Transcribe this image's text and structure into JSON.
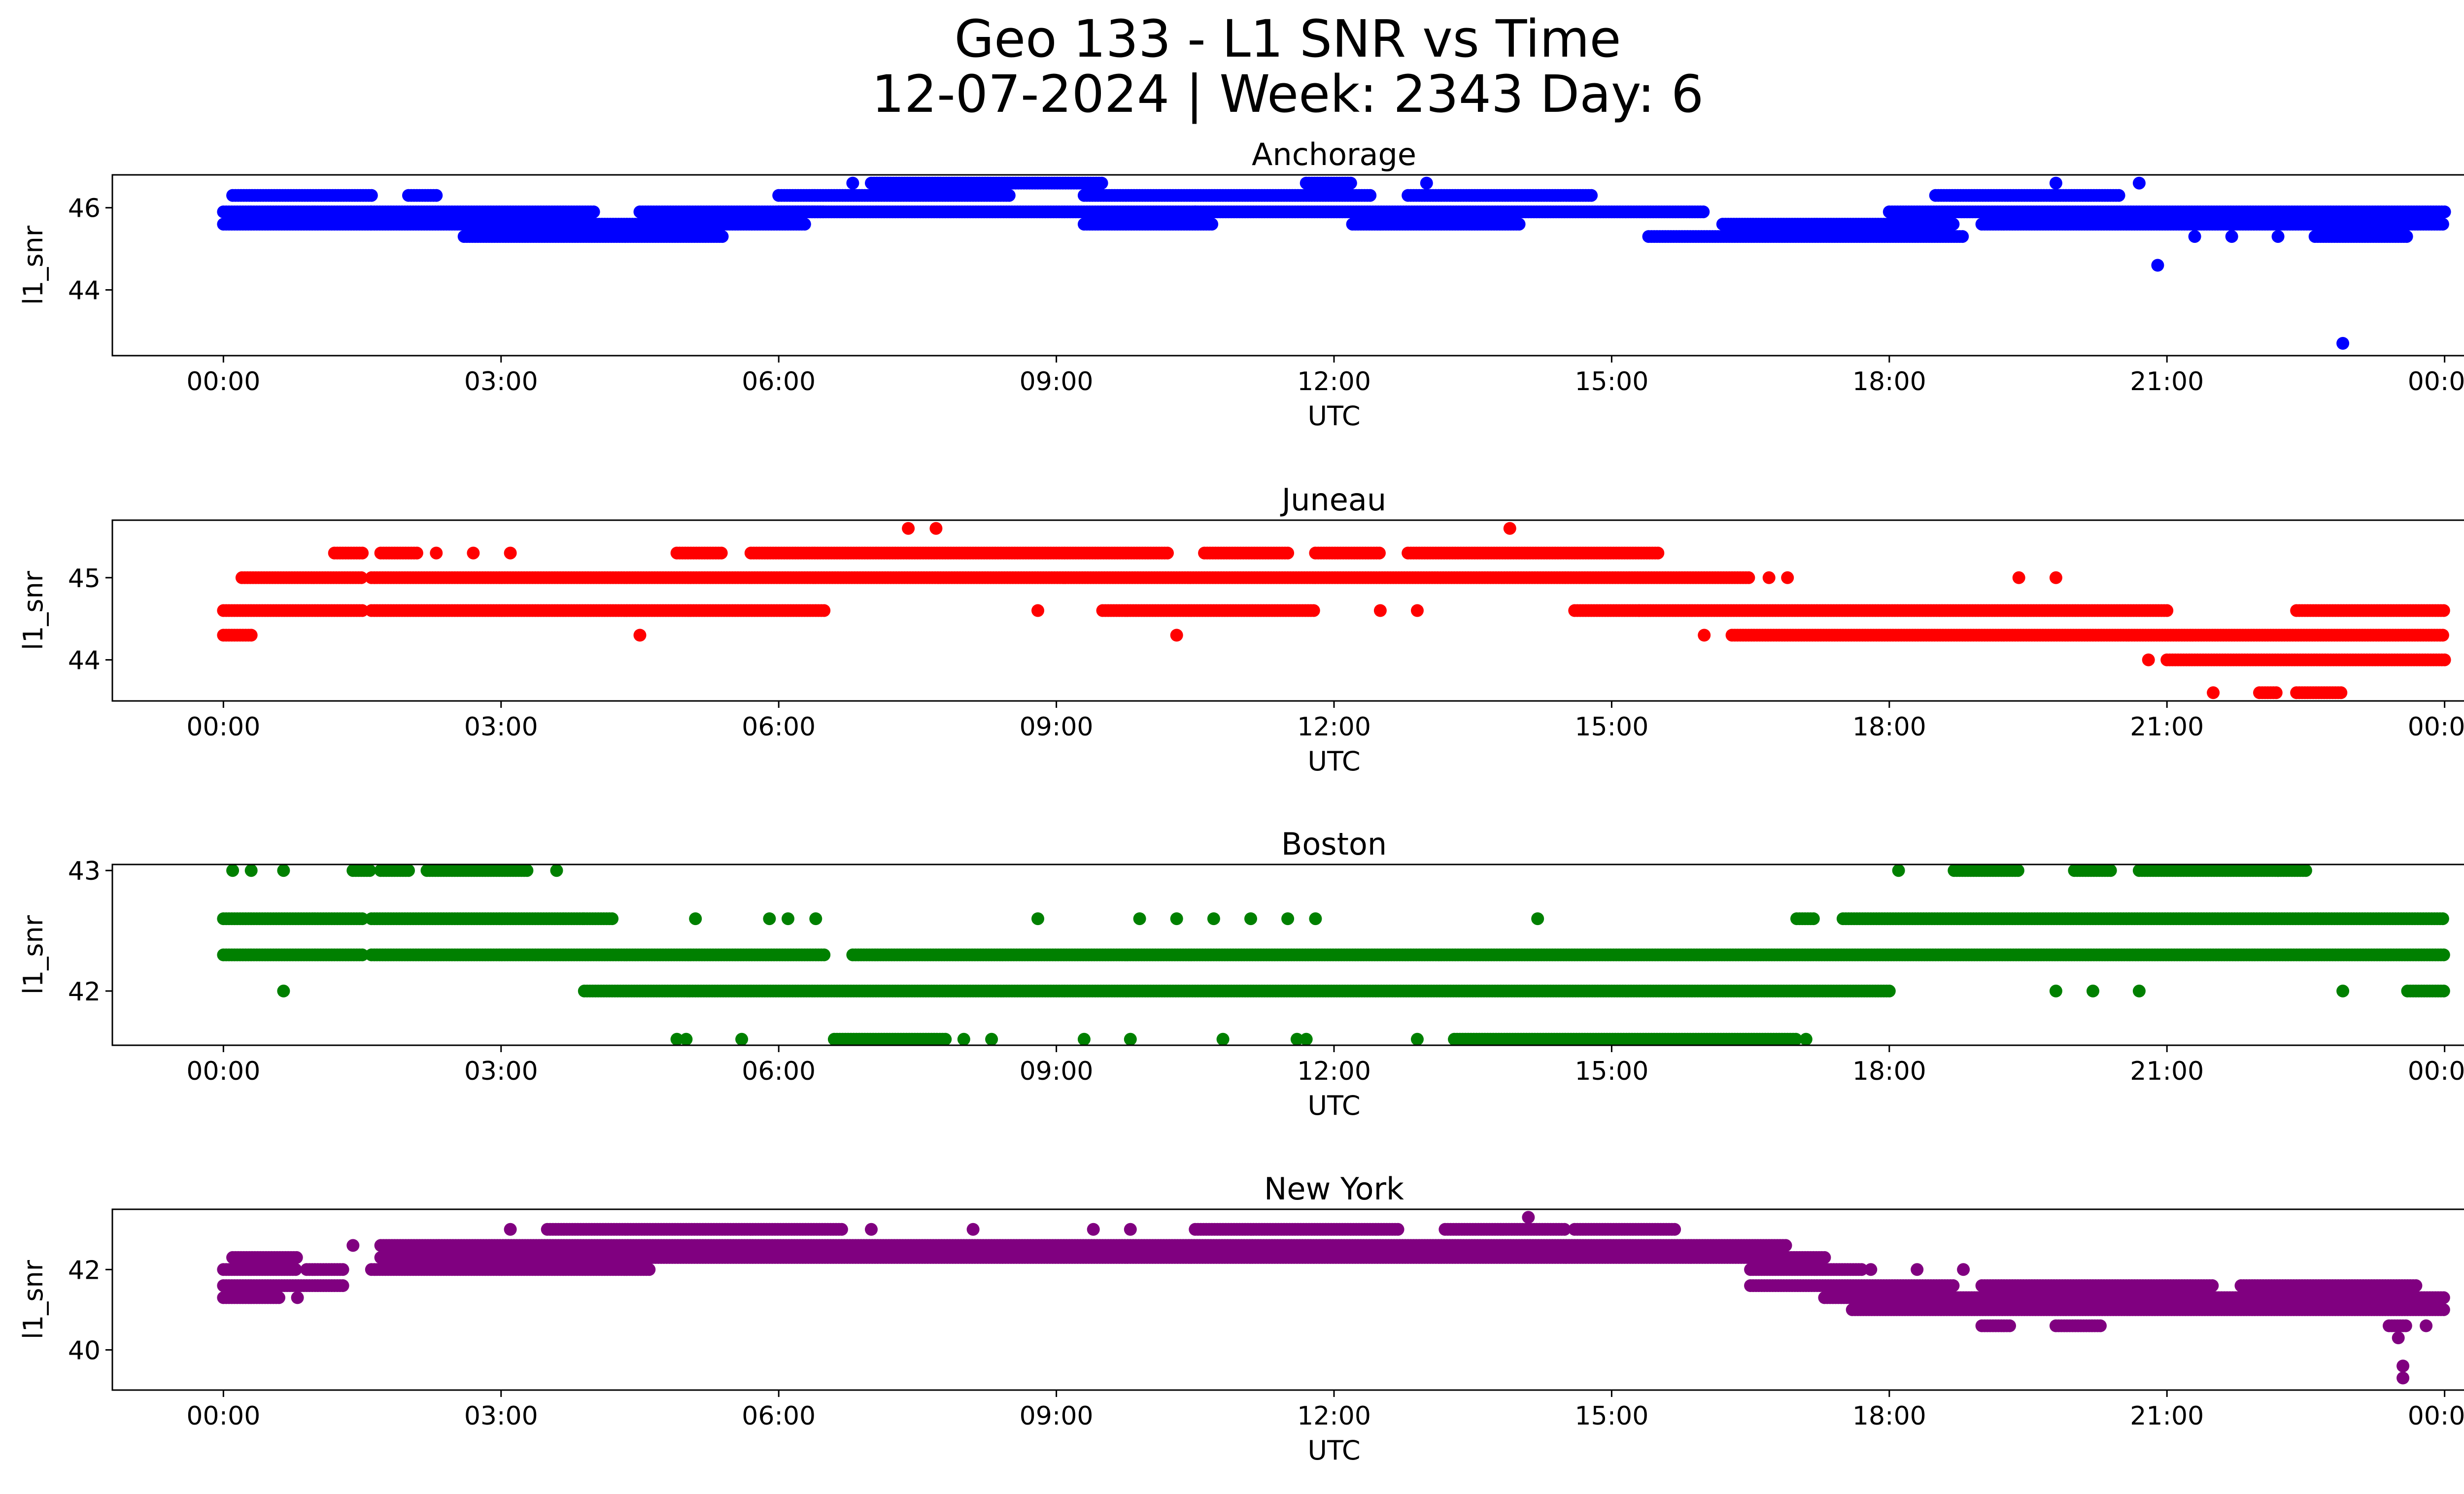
{
  "figure": {
    "title_line1": "Geo 133 - L1 SNR vs Time",
    "title_line2": "12-07-2024 | Week: 2343 Day: 6"
  },
  "chart_data": [
    {
      "type": "scatter",
      "title": "Anchorage",
      "xlabel": "UTC",
      "ylabel": "l1_snr",
      "color": "#0000ff",
      "x_ticks": [
        "00:00",
        "03:00",
        "06:00",
        "09:00",
        "12:00",
        "15:00",
        "18:00",
        "21:00",
        "00:00"
      ],
      "xlim_hours": [
        -1.2,
        25.2
      ],
      "ylim": [
        42.4,
        46.8
      ],
      "y_ticks": [
        44,
        46
      ],
      "levels": [
        {
          "y": 46.3,
          "segments": [
            [
              0.1,
              1.6
            ],
            [
              2.0,
              2.3
            ],
            [
              6.0,
              8.5
            ],
            [
              9.3,
              12.4
            ],
            [
              12.8,
              14.8
            ],
            [
              18.5,
              20.5
            ]
          ]
        },
        {
          "y": 45.9,
          "segments": [
            [
              0.0,
              1.6
            ],
            [
              1.6,
              4.0
            ],
            [
              4.5,
              6.5
            ],
            [
              6.0,
              10.5
            ],
            [
              10.5,
              16.0
            ],
            [
              18.0,
              24.0
            ]
          ]
        },
        {
          "y": 45.6,
          "segments": [
            [
              0.0,
              1.6
            ],
            [
              1.6,
              6.3
            ],
            [
              9.3,
              10.7
            ],
            [
              12.2,
              14.0
            ],
            [
              16.2,
              18.7
            ],
            [
              19.0,
              24.0
            ]
          ]
        },
        {
          "y": 45.3,
          "segments": [
            [
              2.6,
              5.4
            ],
            [
              15.4,
              18.8
            ],
            [
              22.6,
              23.6
            ]
          ]
        },
        {
          "y": 46.6,
          "segments": [
            [
              7.0,
              9.5
            ],
            [
              11.7,
              12.2
            ]
          ]
        }
      ],
      "outliers": [
        [
          6.8,
          46.6
        ],
        [
          13.0,
          46.6
        ],
        [
          19.8,
          46.6
        ],
        [
          20.7,
          46.6
        ],
        [
          20.9,
          44.6
        ],
        [
          22.9,
          42.7
        ],
        [
          12.5,
          45.6
        ],
        [
          21.3,
          45.3
        ],
        [
          21.7,
          45.3
        ],
        [
          22.2,
          45.3
        ]
      ]
    },
    {
      "type": "scatter",
      "title": "Juneau",
      "xlabel": "UTC",
      "ylabel": "l1_snr",
      "color": "#ff0000",
      "x_ticks": [
        "00:00",
        "03:00",
        "06:00",
        "09:00",
        "12:00",
        "15:00",
        "18:00",
        "21:00",
        "00:00"
      ],
      "xlim_hours": [
        -1.2,
        25.2
      ],
      "ylim": [
        43.5,
        45.7
      ],
      "y_ticks": [
        44,
        45
      ],
      "levels": [
        {
          "y": 45.3,
          "segments": [
            [
              1.2,
              1.5
            ],
            [
              1.7,
              2.1
            ],
            [
              4.9,
              5.4
            ],
            [
              5.7,
              10.2
            ],
            [
              10.6,
              11.5
            ],
            [
              11.8,
              12.5
            ],
            [
              12.8,
              15.5
            ]
          ]
        },
        {
          "y": 45.0,
          "segments": [
            [
              0.2,
              1.5
            ],
            [
              1.6,
              16.5
            ]
          ]
        },
        {
          "y": 44.6,
          "segments": [
            [
              0.0,
              1.5
            ],
            [
              1.6,
              6.5
            ],
            [
              9.5,
              11.8
            ],
            [
              14.6,
              15.3
            ],
            [
              15.3,
              21.0
            ],
            [
              22.4,
              24.0
            ]
          ]
        },
        {
          "y": 44.3,
          "segments": [
            [
              0.0,
              0.3
            ],
            [
              16.3,
              24.0
            ]
          ]
        },
        {
          "y": 44.0,
          "segments": [
            [
              21.0,
              24.0
            ]
          ]
        },
        {
          "y": 43.6,
          "segments": [
            [
              22.0,
              22.2
            ],
            [
              22.4,
              22.9
            ]
          ]
        }
      ],
      "outliers": [
        [
          7.4,
          45.6
        ],
        [
          7.7,
          45.6
        ],
        [
          13.9,
          45.6
        ],
        [
          4.5,
          44.3
        ],
        [
          10.3,
          44.3
        ],
        [
          8.8,
          44.6
        ],
        [
          12.5,
          44.6
        ],
        [
          12.9,
          44.6
        ],
        [
          16.7,
          45.0
        ],
        [
          16.9,
          45.0
        ],
        [
          19.4,
          45.0
        ],
        [
          19.8,
          45.0
        ],
        [
          16.0,
          44.3
        ],
        [
          20.8,
          44.0
        ],
        [
          21.5,
          43.6
        ],
        [
          2.3,
          45.3
        ],
        [
          2.7,
          45.3
        ],
        [
          3.1,
          45.3
        ]
      ]
    },
    {
      "type": "scatter",
      "title": "Boston",
      "xlabel": "UTC",
      "ylabel": "l1_snr",
      "color": "#008000",
      "x_ticks": [
        "00:00",
        "03:00",
        "06:00",
        "09:00",
        "12:00",
        "15:00",
        "18:00",
        "21:00",
        "00:00"
      ],
      "xlim_hours": [
        -1.2,
        25.2
      ],
      "ylim": [
        41.55,
        43.05
      ],
      "y_ticks": [
        42,
        43
      ],
      "levels": [
        {
          "y": 43.0,
          "segments": [
            [
              1.4,
              1.6
            ],
            [
              1.7,
              2.0
            ],
            [
              2.2,
              3.3
            ],
            [
              18.7,
              19.4
            ],
            [
              20.0,
              20.4
            ],
            [
              20.7,
              22.2
            ],
            [
              22.2,
              22.5
            ]
          ]
        },
        {
          "y": 42.6,
          "segments": [
            [
              0.0,
              1.5
            ],
            [
              1.6,
              3.9
            ],
            [
              3.9,
              4.2
            ],
            [
              17.0,
              17.2
            ],
            [
              17.5,
              24.0
            ]
          ]
        },
        {
          "y": 42.3,
          "segments": [
            [
              0.0,
              1.5
            ],
            [
              1.6,
              6.5
            ],
            [
              6.8,
              24.0
            ]
          ]
        },
        {
          "y": 42.0,
          "segments": [
            [
              3.9,
              18.0
            ],
            [
              23.6,
              24.0
            ]
          ]
        },
        {
          "y": 41.6,
          "segments": [
            [
              6.6,
              7.8
            ],
            [
              13.3,
              17.0
            ]
          ]
        }
      ],
      "outliers": [
        [
          0.1,
          43.0
        ],
        [
          0.3,
          43.0
        ],
        [
          0.65,
          43.0
        ],
        [
          3.6,
          43.0
        ],
        [
          18.1,
          43.0
        ],
        [
          0.65,
          42.0
        ],
        [
          4.9,
          41.6
        ],
        [
          5.0,
          41.6
        ],
        [
          5.6,
          41.6
        ],
        [
          8.3,
          41.6
        ],
        [
          8.0,
          41.6
        ],
        [
          9.3,
          41.6
        ],
        [
          9.8,
          41.6
        ],
        [
          10.8,
          41.6
        ],
        [
          11.6,
          41.6
        ],
        [
          11.7,
          41.6
        ],
        [
          12.9,
          41.6
        ],
        [
          17.1,
          41.6
        ],
        [
          8.8,
          42.6
        ],
        [
          5.1,
          42.6
        ],
        [
          5.9,
          42.6
        ],
        [
          6.1,
          42.6
        ],
        [
          6.4,
          42.6
        ],
        [
          9.9,
          42.6
        ],
        [
          10.3,
          42.6
        ],
        [
          10.7,
          42.6
        ],
        [
          11.1,
          42.6
        ],
        [
          11.5,
          42.6
        ],
        [
          11.8,
          42.6
        ],
        [
          14.2,
          42.6
        ],
        [
          19.8,
          42.0
        ],
        [
          20.2,
          42.0
        ],
        [
          20.7,
          42.0
        ],
        [
          22.9,
          42.0
        ]
      ]
    },
    {
      "type": "scatter",
      "title": "New York",
      "xlabel": "UTC",
      "ylabel": "l1_snr",
      "color": "#800080",
      "x_ticks": [
        "00:00",
        "03:00",
        "06:00",
        "09:00",
        "12:00",
        "15:00",
        "18:00",
        "21:00",
        "00:00"
      ],
      "xlim_hours": [
        -1.2,
        25.2
      ],
      "ylim": [
        39.0,
        43.5
      ],
      "y_ticks": [
        40,
        42
      ],
      "levels": [
        {
          "y": 43.0,
          "segments": [
            [
              3.5,
              6.7
            ],
            [
              10.5,
              12.7
            ],
            [
              13.2,
              14.5
            ],
            [
              14.6,
              15.7
            ]
          ]
        },
        {
          "y": 42.6,
          "segments": [
            [
              1.7,
              16.9
            ]
          ]
        },
        {
          "y": 42.3,
          "segments": [
            [
              0.1,
              0.8
            ],
            [
              1.7,
              17.3
            ]
          ]
        },
        {
          "y": 42.0,
          "segments": [
            [
              0.0,
              0.8
            ],
            [
              0.9,
              1.3
            ],
            [
              1.6,
              4.6
            ],
            [
              16.5,
              17.7
            ]
          ]
        },
        {
          "y": 41.6,
          "segments": [
            [
              0.0,
              1.3
            ],
            [
              16.5,
              18.7
            ],
            [
              19.0,
              21.5
            ],
            [
              21.8,
              23.7
            ]
          ]
        },
        {
          "y": 41.3,
          "segments": [
            [
              0.0,
              0.6
            ],
            [
              17.3,
              24.0
            ]
          ]
        },
        {
          "y": 41.0,
          "segments": [
            [
              17.6,
              24.0
            ]
          ]
        },
        {
          "y": 40.6,
          "segments": [
            [
              19.0,
              19.3
            ],
            [
              19.8,
              20.3
            ],
            [
              23.4,
              23.6
            ]
          ]
        }
      ],
      "outliers": [
        [
          3.1,
          43.0
        ],
        [
          7.0,
          43.0
        ],
        [
          8.1,
          43.0
        ],
        [
          9.4,
          43.0
        ],
        [
          9.8,
          43.0
        ],
        [
          14.1,
          43.3
        ],
        [
          0.8,
          41.3
        ],
        [
          1.4,
          42.6
        ],
        [
          23.5,
          40.3
        ],
        [
          23.55,
          39.6
        ],
        [
          23.55,
          39.3
        ],
        [
          23.8,
          40.6
        ],
        [
          17.8,
          42.0
        ],
        [
          18.3,
          42.0
        ],
        [
          18.8,
          42.0
        ]
      ]
    }
  ]
}
